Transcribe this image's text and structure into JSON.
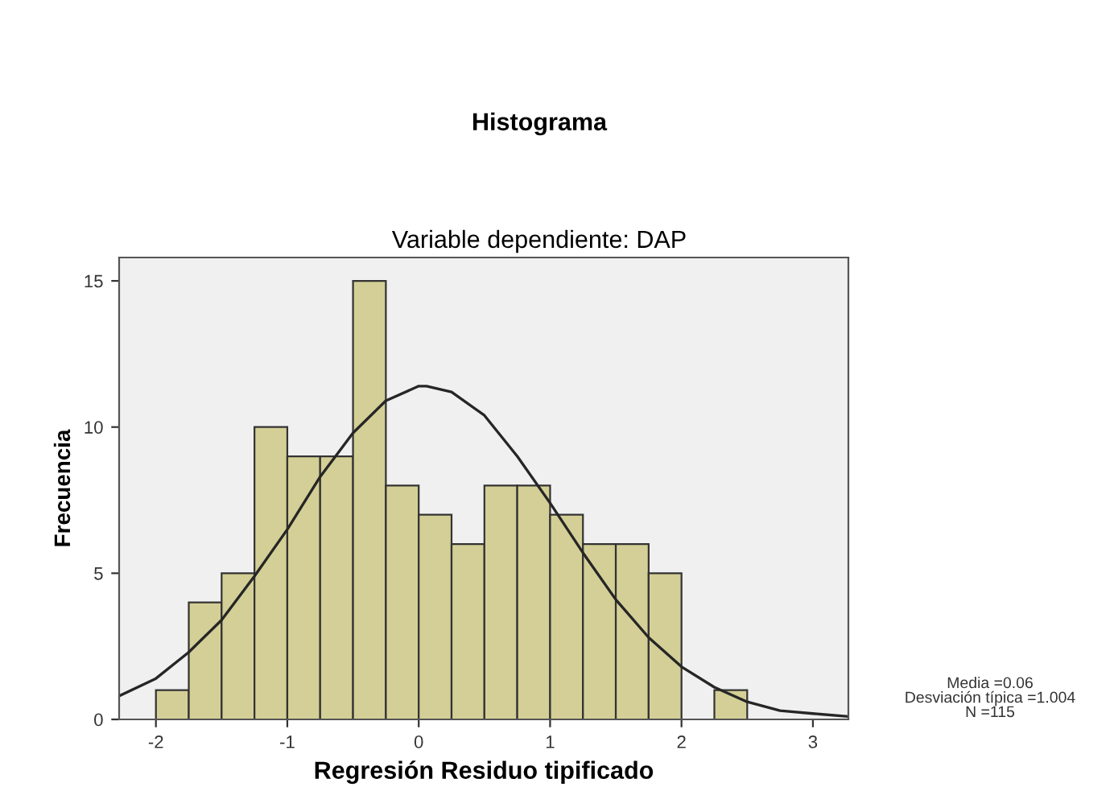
{
  "chart_data": {
    "type": "histogram",
    "title": "Histograma",
    "subtitle": "Variable dependiente: DAP",
    "xlabel": "Regresión Residuo tipificado",
    "ylabel": "Frecuencia",
    "xlim": [
      -2.28,
      3.27
    ],
    "xticks": [
      -2,
      -1,
      0,
      1,
      2,
      3
    ],
    "ylim": [
      0,
      15.8
    ],
    "yticks": [
      0,
      5,
      10,
      15
    ],
    "grid": false,
    "legend": false,
    "annotations": [
      "Media =0.06",
      "Desviación típica =1.004",
      "N =115"
    ],
    "series": [
      {
        "color": "#d4cf96",
        "bins": [
          -2,
          -1.75,
          -1.5,
          -1.25,
          -1,
          -0.75,
          -0.5,
          -0.25,
          0,
          0.25,
          0.5,
          0.75,
          1,
          1.25,
          1.5,
          1.75,
          2,
          2.25,
          2.5
        ],
        "values": [
          1,
          4,
          5,
          10,
          9,
          9,
          15,
          8,
          7,
          6,
          8,
          8,
          7,
          6,
          6,
          5,
          0,
          1
        ]
      },
      {
        "type": "line",
        "color": "#262626",
        "x": [
          -2.28,
          -2,
          -1.75,
          -1.5,
          -1.25,
          -1,
          -0.75,
          -0.5,
          -0.25,
          0,
          0.06,
          0.25,
          0.5,
          0.75,
          1,
          1.25,
          1.5,
          1.75,
          2,
          2.25,
          2.5,
          2.75,
          3,
          3.27
        ],
        "values": [
          0.8,
          1.4,
          2.3,
          3.4,
          4.9,
          6.5,
          8.3,
          9.8,
          10.9,
          11.4,
          11.4,
          11.2,
          10.4,
          9.0,
          7.4,
          5.7,
          4.1,
          2.8,
          1.8,
          1.1,
          0.6,
          0.3,
          0.2,
          0.1
        ]
      }
    ]
  }
}
